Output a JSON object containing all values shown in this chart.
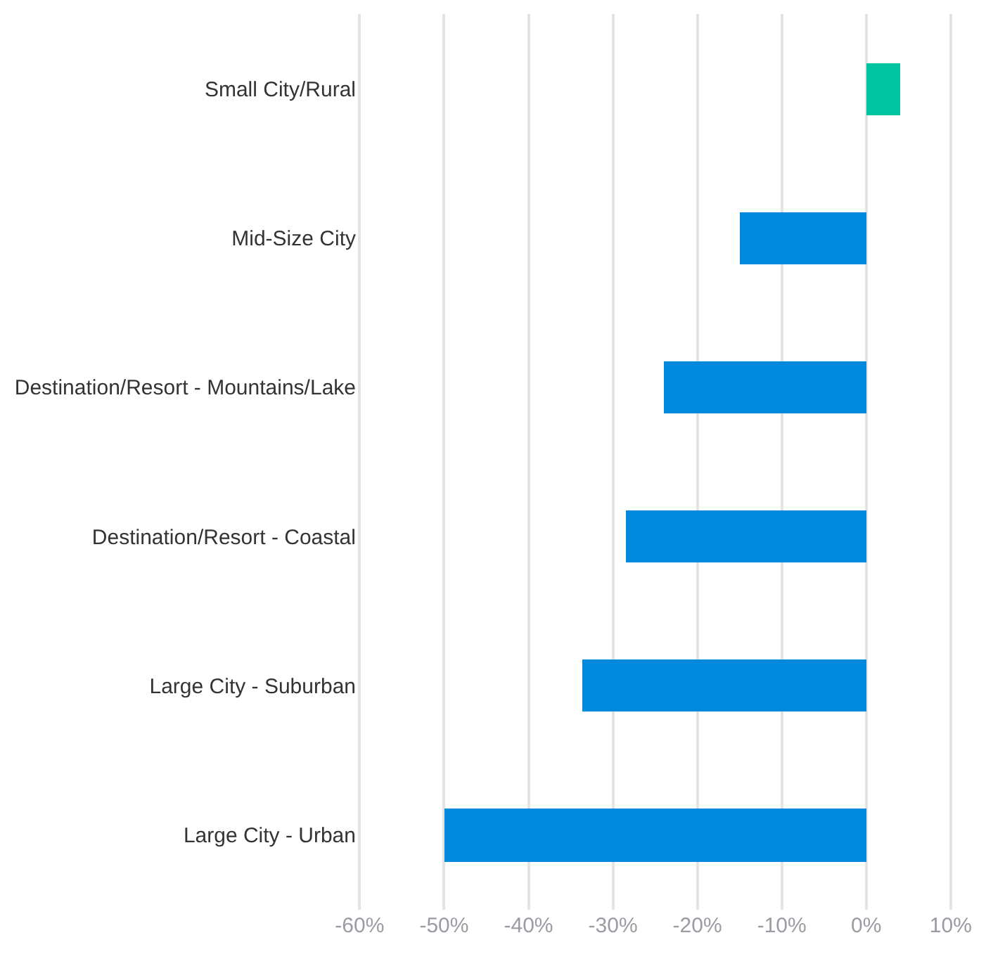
{
  "chart_data": {
    "type": "bar",
    "orientation": "horizontal",
    "categories": [
      "Small City/Rural",
      "Mid-Size City",
      "Destination/Resort - Mountains/Lake",
      "Destination/Resort - Coastal",
      "Large City - Suburban",
      "Large City - Urban"
    ],
    "values": [
      4,
      -15,
      -24,
      -28.5,
      -33.6,
      -50
    ],
    "colors": [
      "#00c4a0",
      "#0088dd",
      "#0088dd",
      "#0088dd",
      "#0088dd",
      "#0088dd"
    ],
    "xlim": [
      -60,
      10
    ],
    "xticks": [
      {
        "value": -60,
        "label": "-60%"
      },
      {
        "value": -50,
        "label": "-50%"
      },
      {
        "value": -40,
        "label": "-40%"
      },
      {
        "value": -30,
        "label": "-30%"
      },
      {
        "value": -20,
        "label": "-20%"
      },
      {
        "value": -10,
        "label": "-10%"
      },
      {
        "value": 0,
        "label": "0%"
      },
      {
        "value": 10,
        "label": "10%"
      }
    ],
    "grid": "x"
  }
}
